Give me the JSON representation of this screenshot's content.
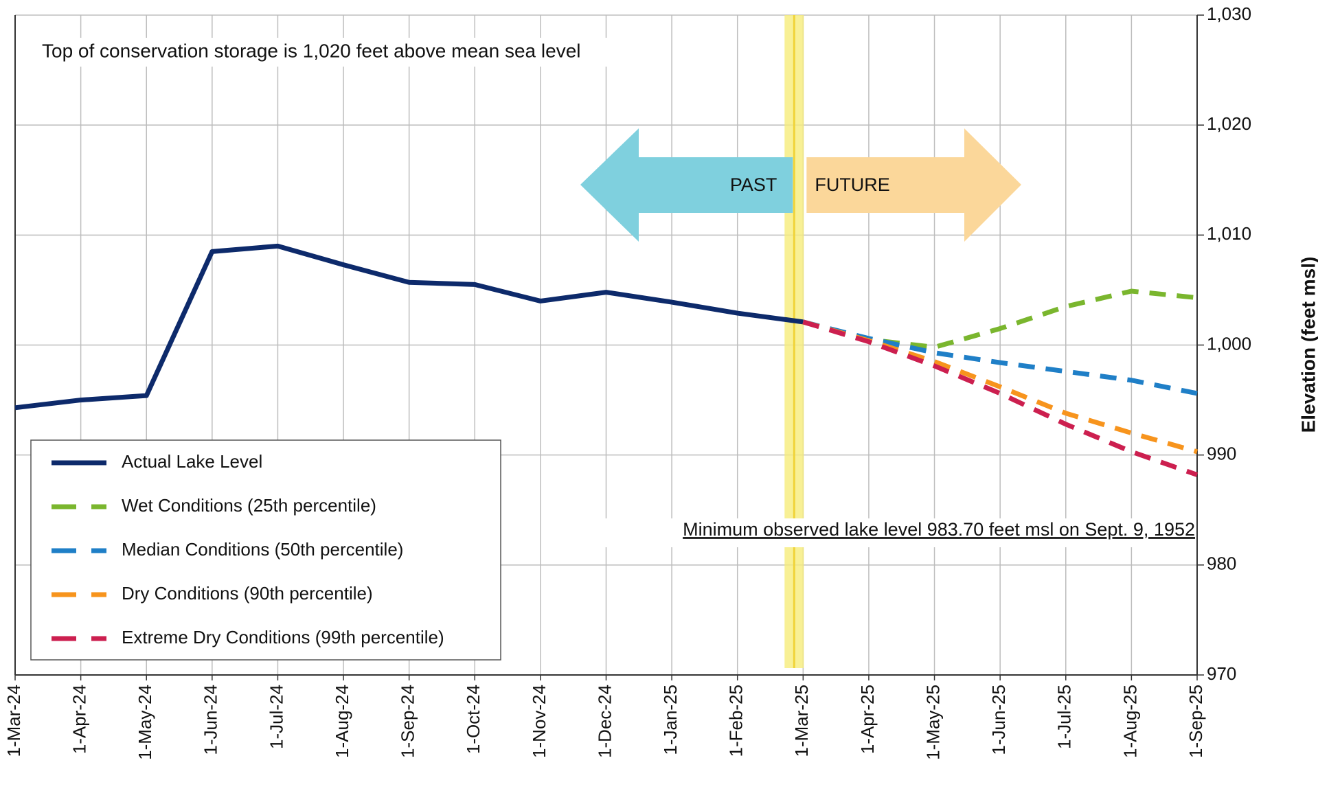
{
  "chart_data": {
    "type": "line",
    "y_axis_label": "Elevation (feet msl)",
    "annotations": [
      "Top of conservation storage is 1,020 feet above mean sea level",
      "Minimum observed lake level 983.70 feet msl on Sept. 9, 1952",
      "PAST",
      "FUTURE"
    ],
    "categories": [
      "1-Mar-24",
      "1-Apr-24",
      "1-May-24",
      "1-Jun-24",
      "1-Jul-24",
      "1-Aug-24",
      "1-Sep-24",
      "1-Oct-24",
      "1-Nov-24",
      "1-Dec-24",
      "1-Jan-25",
      "1-Feb-25",
      "1-Mar-25",
      "1-Apr-25",
      "1-May-25",
      "1-Jun-25",
      "1-Jul-25",
      "1-Aug-25",
      "1-Sep-25"
    ],
    "series": [
      {
        "name": "Actual Lake Level",
        "color": "#0d2a6b",
        "dash": false,
        "values": [
          994.3,
          995.0,
          995.4,
          1008.5,
          1009.0,
          1007.3,
          1005.7,
          1005.5,
          1004.0,
          1004.8,
          1003.9,
          1002.9,
          1002.1,
          null,
          null,
          null,
          null,
          null,
          null
        ]
      },
      {
        "name": "Wet Conditions (25th percentile)",
        "color": "#7ab62e",
        "dash": true,
        "values": [
          null,
          null,
          null,
          null,
          null,
          null,
          null,
          null,
          null,
          null,
          null,
          null,
          1002.1,
          1000.5,
          999.8,
          1001.5,
          1003.5,
          1004.9,
          1004.3
        ]
      },
      {
        "name": "Median Conditions (50th percentile)",
        "color": "#1f7fc7",
        "dash": true,
        "values": [
          null,
          null,
          null,
          null,
          null,
          null,
          null,
          null,
          null,
          null,
          null,
          null,
          1002.1,
          1000.6,
          999.3,
          998.4,
          997.6,
          996.8,
          995.6
        ]
      },
      {
        "name": "Dry Conditions (90th percentile)",
        "color": "#f7941d",
        "dash": true,
        "values": [
          null,
          null,
          null,
          null,
          null,
          null,
          null,
          null,
          null,
          null,
          null,
          null,
          1002.1,
          1000.4,
          998.5,
          996.2,
          993.8,
          992.0,
          990.3
        ]
      },
      {
        "name": "Extreme Dry Conditions (99th percentile)",
        "color": "#cc1f4f",
        "dash": true,
        "values": [
          null,
          null,
          null,
          null,
          null,
          null,
          null,
          null,
          null,
          null,
          null,
          null,
          1002.1,
          1000.3,
          998.1,
          995.6,
          992.8,
          990.3,
          988.2
        ]
      }
    ],
    "ylim": [
      970,
      1030
    ],
    "yticks": [
      970,
      980,
      990,
      {
        "value": 1000,
        "label": "1,000"
      },
      {
        "value": 1010,
        "label": "1,010"
      },
      {
        "value": 1020,
        "label": "1,020"
      },
      {
        "value": 1030,
        "label": "1,030"
      }
    ],
    "grid": true,
    "legend": "lower left"
  }
}
